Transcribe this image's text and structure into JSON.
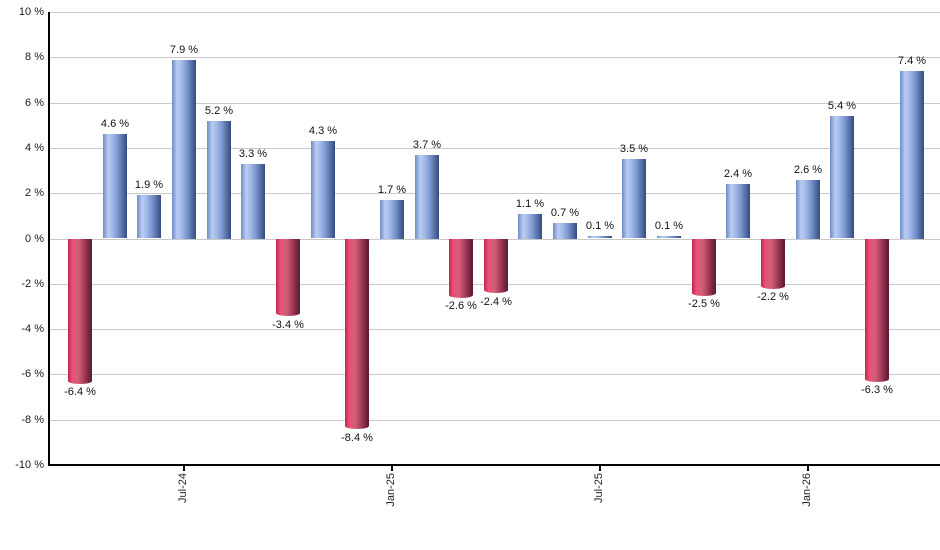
{
  "chart_data": {
    "type": "bar",
    "title": "",
    "xlabel": "",
    "ylabel": "",
    "values": [
      -6.4,
      4.6,
      1.9,
      7.9,
      5.2,
      3.3,
      -3.4,
      4.3,
      -8.4,
      1.7,
      3.7,
      -2.6,
      -2.4,
      1.1,
      0.7,
      0.1,
      3.5,
      0.1,
      -2.5,
      2.4,
      -2.2,
      2.6,
      5.4,
      -6.3,
      7.4
    ],
    "value_label_suffix": " %",
    "y_ticks": [
      "10 %",
      "8 %",
      "6 %",
      "4 %",
      "2 %",
      "0 %",
      "-2 %",
      "-4 %",
      "-6 %",
      "-8 %",
      "-10 %"
    ],
    "ylim": [
      -10,
      10
    ],
    "y_step": 2,
    "x_ticks": [
      {
        "label": "Jul-24",
        "bar_index": 3
      },
      {
        "label": "Jan-25",
        "bar_index": 9
      },
      {
        "label": "Jul-25",
        "bar_index": 15
      },
      {
        "label": "Jan-26",
        "bar_index": 21
      }
    ],
    "grid": true,
    "legend": "none",
    "colors": {
      "positive_bar": "#88a4dd",
      "positive_bar_highlight": "#b9cdf2",
      "positive_bar_shadow": "#354b7d",
      "negative_bar": "#d35f78",
      "negative_bar_highlight": "#ea5077",
      "negative_bar_shadow": "#5d1b31",
      "gridline": "#c9c9c9",
      "axis": "#000000",
      "text": "#111111"
    }
  }
}
